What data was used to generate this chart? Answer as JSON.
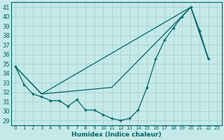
{
  "xlabel": "Humidex (Indice chaleur)",
  "ylabel": "",
  "bg_color": "#c5e8e8",
  "grid_color": "#aad4d4",
  "line_color": "#006666",
  "xlim": [
    -0.5,
    23.5
  ],
  "ylim": [
    28.5,
    41.5
  ],
  "xticks": [
    0,
    1,
    2,
    3,
    4,
    5,
    6,
    7,
    8,
    9,
    10,
    11,
    12,
    13,
    14,
    15,
    16,
    17,
    18,
    19,
    20,
    21,
    22,
    23
  ],
  "yticks": [
    29,
    30,
    31,
    32,
    33,
    34,
    35,
    36,
    37,
    38,
    39,
    40,
    41
  ],
  "series1_marked": [
    [
      0,
      34.7
    ],
    [
      1,
      32.8
    ],
    [
      2,
      31.8
    ],
    [
      3,
      31.5
    ],
    [
      4,
      31.1
    ],
    [
      5,
      31.1
    ],
    [
      6,
      30.5
    ],
    [
      7,
      31.2
    ],
    [
      8,
      30.1
    ],
    [
      9,
      30.1
    ],
    [
      10,
      29.6
    ],
    [
      11,
      29.2
    ],
    [
      12,
      29.0
    ],
    [
      13,
      29.2
    ],
    [
      14,
      30.1
    ],
    [
      15,
      32.5
    ],
    [
      16,
      35.5
    ],
    [
      17,
      37.5
    ],
    [
      18,
      38.8
    ],
    [
      19,
      40.0
    ],
    [
      20,
      41.0
    ],
    [
      21,
      38.5
    ],
    [
      22,
      35.5
    ]
  ],
  "series2_straight": [
    [
      0,
      34.7
    ],
    [
      3,
      31.8
    ],
    [
      20,
      41.0
    ],
    [
      22,
      35.5
    ]
  ],
  "series3_mid": [
    [
      0,
      34.7
    ],
    [
      3,
      31.8
    ],
    [
      11,
      32.5
    ],
    [
      20,
      41.0
    ],
    [
      22,
      35.5
    ]
  ]
}
